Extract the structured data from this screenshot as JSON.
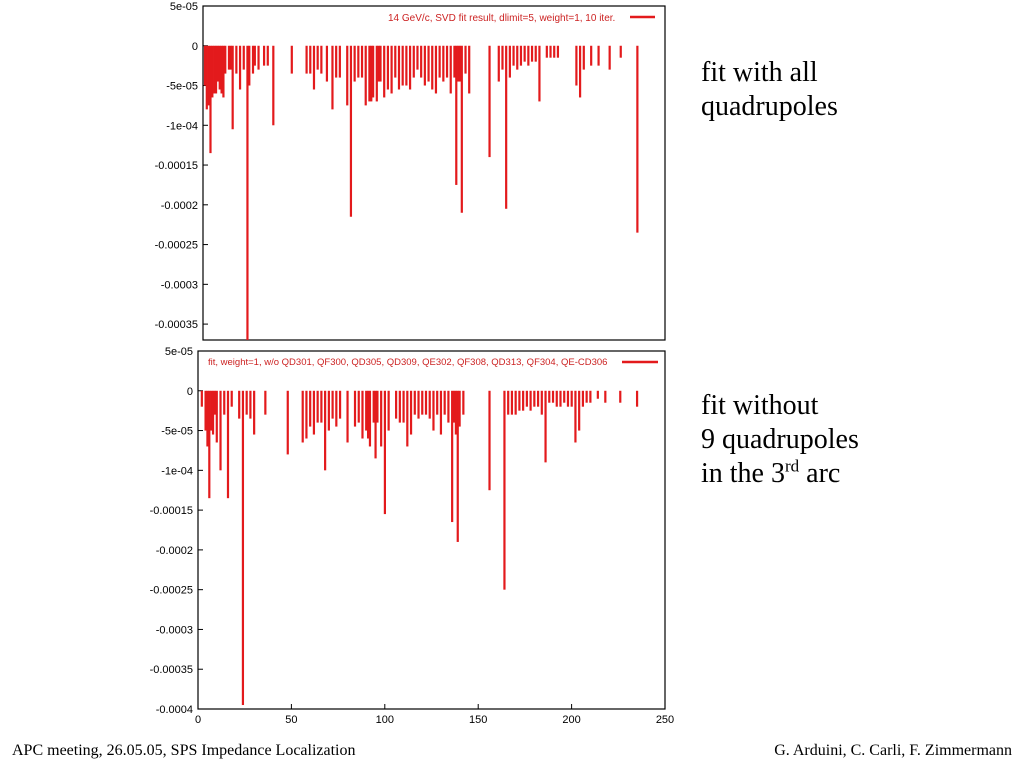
{
  "slide": {
    "desc_top": {
      "line1": "fit with all",
      "line2": "quadrupoles"
    },
    "desc_bottom": {
      "line1": "fit without",
      "line2": "9 quadrupoles",
      "line3_pre": "in the 3",
      "line3_sup": "rd",
      "line3_post": " arc"
    },
    "footer_left": "APC meeting, 26.05.05, SPS Impedance Localization",
    "footer_right": "G. Arduini, C. Carli, F. Zimmermann"
  },
  "colors": {
    "bar": "#e31a1c",
    "legend": "#cc2222",
    "axis": "#000000"
  },
  "chart_data": [
    {
      "type": "bar",
      "legend": "14 GeV/c, SVD fit result, dlimit=5, weight=1, 10 iter.",
      "xlim": [
        0,
        250
      ],
      "ylim": [
        -0.00037,
        5e-05
      ],
      "yticks": [
        "5e-05",
        "0",
        "-5e-05",
        "-1e-04",
        "-0.00015",
        "-0.0002",
        "-0.00025",
        "-0.0003",
        "-0.00035"
      ],
      "ytick_values": [
        5e-05,
        0,
        -5e-05,
        -0.0001,
        -0.00015,
        -0.0002,
        -0.00025,
        -0.0003,
        -0.00035
      ],
      "xticks": [],
      "x": [
        1,
        2,
        3,
        4,
        5,
        6,
        7,
        8,
        9,
        10,
        11,
        12,
        14,
        15,
        16,
        18,
        20,
        22,
        24,
        25,
        27,
        28,
        30,
        33,
        35,
        38,
        48,
        56,
        58,
        60,
        62,
        64,
        67,
        70,
        72,
        74,
        78,
        80,
        82,
        84,
        86,
        88,
        90,
        91,
        92,
        94,
        95,
        96,
        98,
        100,
        102,
        104,
        106,
        108,
        110,
        112,
        114,
        116,
        118,
        120,
        122,
        124,
        126,
        128,
        130,
        132,
        134,
        136,
        137,
        138,
        139,
        140,
        142,
        144,
        155,
        160,
        162,
        164,
        166,
        168,
        170,
        172,
        174,
        176,
        178,
        180,
        182,
        186,
        188,
        190,
        192,
        202,
        204,
        206,
        210,
        214,
        220,
        226,
        235
      ],
      "values": [
        -5e-05,
        -8e-05,
        -7.5e-05,
        -0.000135,
        -6.5e-05,
        -6e-05,
        -6e-05,
        -4.5e-05,
        -5.5e-05,
        -6e-05,
        -6.5e-05,
        -3.5e-05,
        -3e-05,
        -3e-05,
        -0.000105,
        -3.5e-05,
        -5.5e-05,
        -3e-05,
        -0.00037,
        -5e-05,
        -3.5e-05,
        -2.5e-05,
        -3e-05,
        -2.5e-05,
        -2.5e-05,
        -0.0001,
        -3.5e-05,
        -3.5e-05,
        -3.5e-05,
        -5.5e-05,
        -3e-05,
        -3.5e-05,
        -4.5e-05,
        -8e-05,
        -4e-05,
        -4e-05,
        -7.5e-05,
        -0.000215,
        -4.5e-05,
        -4e-05,
        -4e-05,
        -7.5e-05,
        -7e-05,
        -7e-05,
        -6.5e-05,
        -7e-05,
        -4.5e-05,
        -4.5e-05,
        -6.5e-05,
        -5.5e-05,
        -6e-05,
        -4e-05,
        -5.5e-05,
        -5e-05,
        -5e-05,
        -5.5e-05,
        -4e-05,
        -3e-05,
        -4e-05,
        -5e-05,
        -4.5e-05,
        -5.5e-05,
        -6e-05,
        -4e-05,
        -4.5e-05,
        -4e-05,
        -6e-05,
        -4e-05,
        -0.000175,
        -4.5e-05,
        -4.5e-05,
        -0.00021,
        -3.5e-05,
        -6e-05,
        -0.00014,
        -4.5e-05,
        -3e-05,
        -0.000205,
        -4e-05,
        -2.5e-05,
        -3e-05,
        -2.5e-05,
        -2e-05,
        -2.5e-05,
        -2e-05,
        -2e-05,
        -7e-05,
        -1.5e-05,
        -1.5e-05,
        -1.5e-05,
        -1.5e-05,
        -5e-05,
        -6.5e-05,
        -3e-05,
        -2.5e-05,
        -2.5e-05,
        -3e-05,
        -1.5e-05,
        -0.000235
      ]
    },
    {
      "type": "bar",
      "legend": "fit, weight=1, w/o QD301, QF300, QD305, QD309, QE302, QF308, QD313, QF304, QE-CD306",
      "xlim": [
        0,
        250
      ],
      "ylim": [
        -0.0004,
        5e-05
      ],
      "yticks": [
        "5e-05",
        "0",
        "-5e-05",
        "-1e-04",
        "-0.00015",
        "-0.0002",
        "-0.00025",
        "-0.0003",
        "-0.00035",
        "-0.0004"
      ],
      "ytick_values": [
        5e-05,
        0,
        -5e-05,
        -0.0001,
        -0.00015,
        -0.0002,
        -0.00025,
        -0.0003,
        -0.00035,
        -0.0004
      ],
      "xticks": [
        "0",
        "50",
        "100",
        "150",
        "200",
        "250"
      ],
      "xtick_values": [
        0,
        50,
        100,
        150,
        200,
        250
      ],
      "x": [
        2,
        4,
        5,
        6,
        7,
        8,
        9,
        10,
        12,
        14,
        16,
        18,
        22,
        24,
        26,
        28,
        30,
        36,
        48,
        56,
        58,
        60,
        62,
        64,
        66,
        68,
        70,
        72,
        74,
        76,
        80,
        84,
        86,
        88,
        90,
        91,
        92,
        94,
        95,
        96,
        98,
        100,
        102,
        106,
        108,
        110,
        112,
        114,
        116,
        118,
        120,
        122,
        124,
        126,
        128,
        130,
        132,
        134,
        136,
        137,
        138,
        139,
        140,
        142,
        156,
        164,
        166,
        168,
        170,
        172,
        174,
        176,
        178,
        180,
        182,
        184,
        186,
        188,
        190,
        192,
        194,
        196,
        198,
        200,
        202,
        204,
        206,
        208,
        210,
        214,
        218,
        226,
        235
      ],
      "values": [
        -2e-05,
        -5e-05,
        -7e-05,
        -0.000135,
        -5e-05,
        -5.5e-05,
        -3e-05,
        -6.5e-05,
        -0.0001,
        -3e-05,
        -0.000135,
        -2e-05,
        -3.5e-05,
        -0.000395,
        -3e-05,
        -3.5e-05,
        -5.5e-05,
        -3e-05,
        -8e-05,
        -6.5e-05,
        -6e-05,
        -4.5e-05,
        -5.5e-05,
        -4e-05,
        -4e-05,
        -0.0001,
        -5e-05,
        -3.5e-05,
        -4.5e-05,
        -3.5e-05,
        -6.5e-05,
        -4.5e-05,
        -4e-05,
        -6e-05,
        -5e-05,
        -6e-05,
        -7e-05,
        -4e-05,
        -8.5e-05,
        -4e-05,
        -7e-05,
        -0.000155,
        -5e-05,
        -3.5e-05,
        -4e-05,
        -4e-05,
        -7e-05,
        -5.5e-05,
        -3e-05,
        -3.5e-05,
        -3e-05,
        -3e-05,
        -3.5e-05,
        -5e-05,
        -3e-05,
        -5.5e-05,
        -3e-05,
        -4e-05,
        -0.000165,
        -4e-05,
        -5.5e-05,
        -0.00019,
        -4.5e-05,
        -3e-05,
        -0.000125,
        -0.00025,
        -3e-05,
        -3e-05,
        -3e-05,
        -2.5e-05,
        -2.5e-05,
        -2e-05,
        -2.5e-05,
        -2e-05,
        -2e-05,
        -3e-05,
        -9e-05,
        -1.5e-05,
        -1.5e-05,
        -2e-05,
        -2e-05,
        -1.5e-05,
        -2e-05,
        -2e-05,
        -6.5e-05,
        -5e-05,
        -2e-05,
        -1.5e-05,
        -1.5e-05,
        -1e-05,
        -1.5e-05,
        -1.5e-05,
        -2e-05
      ]
    }
  ]
}
